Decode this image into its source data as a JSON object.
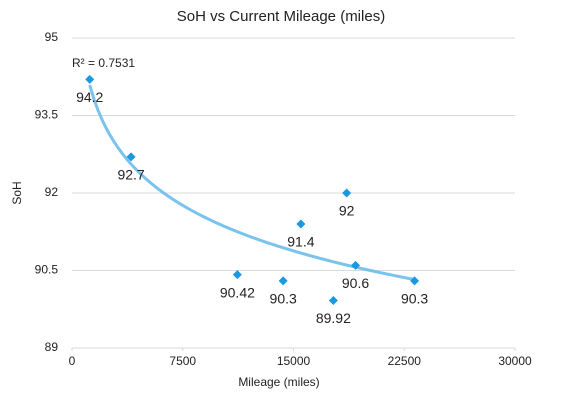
{
  "chart_data": {
    "type": "scatter",
    "title": "SoH vs Current Mileage (miles)",
    "x_label": "Mileage (miles)",
    "y_label": "SoH",
    "annotation": "R² = 0.7531",
    "trendline": "logarithmic",
    "x": [
      1200,
      4000,
      11200,
      14300,
      15500,
      17700,
      18600,
      19200,
      23200
    ],
    "values": [
      94.2,
      92.7,
      90.42,
      90.3,
      91.4,
      89.92,
      92,
      90.6,
      90.3
    ],
    "color": "#1a98e0",
    "trend_color": "#62b8ea",
    "xlim": [
      0,
      30000
    ],
    "xticks": [
      0,
      7500,
      15000,
      22500,
      30000
    ],
    "ylim": [
      89,
      95
    ],
    "yticks": [
      89,
      90.5,
      92,
      93.5,
      95
    ],
    "grid": true
  }
}
